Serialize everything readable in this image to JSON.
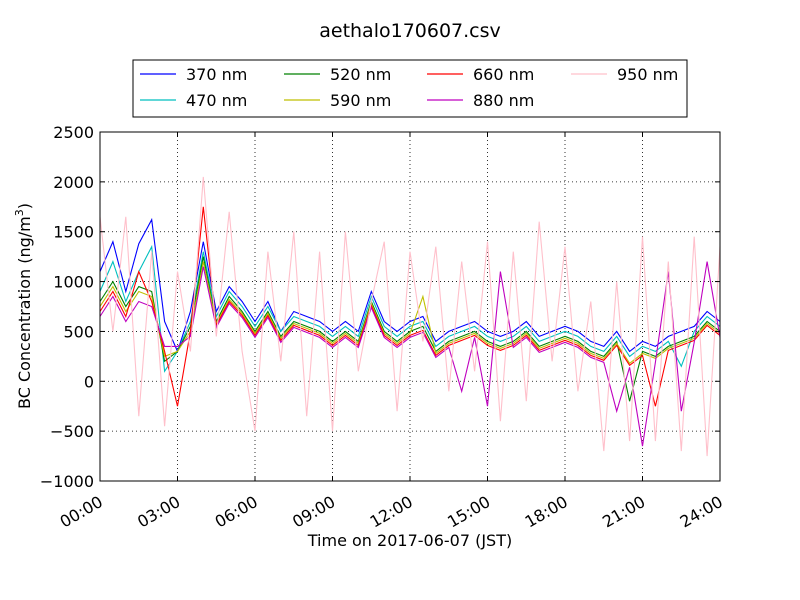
{
  "chart_data": {
    "type": "line",
    "title": "aethalo170607.csv",
    "xlabel": "Time on 2017-06-07 (JST)",
    "ylabel": "BC Concentration (ng/m³)",
    "ylabel_main": "BC Concentration (ng/m",
    "ylabel_sup": "3",
    "ylabel_tail": ")",
    "xlim": [
      0,
      24
    ],
    "ylim": [
      -1000,
      2500
    ],
    "x_ticks": [
      {
        "value": 0,
        "label": "00:00"
      },
      {
        "value": 3,
        "label": "03:00"
      },
      {
        "value": 6,
        "label": "06:00"
      },
      {
        "value": 9,
        "label": "09:00"
      },
      {
        "value": 12,
        "label": "12:00"
      },
      {
        "value": 15,
        "label": "15:00"
      },
      {
        "value": 18,
        "label": "18:00"
      },
      {
        "value": 21,
        "label": "21:00"
      },
      {
        "value": 24,
        "label": "24:00"
      }
    ],
    "y_ticks": [
      {
        "value": -1000,
        "label": "−1000"
      },
      {
        "value": -500,
        "label": "−500"
      },
      {
        "value": 0,
        "label": "0"
      },
      {
        "value": 500,
        "label": "500"
      },
      {
        "value": 1000,
        "label": "1000"
      },
      {
        "value": 1500,
        "label": "1500"
      },
      {
        "value": 2000,
        "label": "2000"
      },
      {
        "value": 2500,
        "label": "2500"
      }
    ],
    "grid": true,
    "legend_position": "top",
    "series": [
      {
        "name": "370 nm",
        "color": "#0000ff",
        "x": [
          0,
          0.5,
          1,
          1.5,
          2,
          2.5,
          3,
          3.5,
          4,
          4.5,
          5,
          5.5,
          6,
          6.5,
          7,
          7.5,
          8,
          8.5,
          9,
          9.5,
          10,
          10.5,
          11,
          11.5,
          12,
          12.5,
          13,
          13.5,
          14,
          14.5,
          15,
          15.5,
          16,
          16.5,
          17,
          17.5,
          18,
          18.5,
          19,
          19.5,
          20,
          20.5,
          21,
          21.5,
          22,
          22.5,
          23,
          23.5,
          24
        ],
        "values": [
          1100,
          1400,
          900,
          1380,
          1620,
          600,
          300,
          700,
          1400,
          700,
          950,
          800,
          600,
          800,
          500,
          700,
          650,
          600,
          500,
          600,
          500,
          900,
          600,
          500,
          600,
          650,
          400,
          500,
          550,
          600,
          500,
          450,
          500,
          600,
          450,
          500,
          550,
          500,
          400,
          350,
          500,
          300,
          400,
          350,
          450,
          500,
          550,
          700,
          600
        ]
      },
      {
        "name": "470 nm",
        "color": "#00bfbf",
        "x": [
          0,
          0.5,
          1,
          1.5,
          2,
          2.5,
          3,
          3.5,
          4,
          4.5,
          5,
          5.5,
          6,
          6.5,
          7,
          7.5,
          8,
          8.5,
          9,
          9.5,
          10,
          10.5,
          11,
          11.5,
          12,
          12.5,
          13,
          13.5,
          14,
          14.5,
          15,
          15.5,
          16,
          16.5,
          17,
          17.5,
          18,
          18.5,
          19,
          19.5,
          20,
          20.5,
          21,
          21.5,
          22,
          22.5,
          23,
          23.5,
          24
        ],
        "values": [
          900,
          1200,
          800,
          1100,
          1350,
          100,
          300,
          600,
          1300,
          650,
          900,
          750,
          550,
          750,
          500,
          650,
          600,
          550,
          450,
          550,
          450,
          850,
          550,
          450,
          550,
          600,
          350,
          450,
          500,
          550,
          450,
          400,
          450,
          550,
          400,
          450,
          500,
          450,
          350,
          300,
          450,
          250,
          350,
          300,
          400,
          150,
          500,
          650,
          550
        ]
      },
      {
        "name": "520 nm",
        "color": "#008000",
        "x": [
          0,
          0.5,
          1,
          1.5,
          2,
          2.5,
          3,
          3.5,
          4,
          4.5,
          5,
          5.5,
          6,
          6.5,
          7,
          7.5,
          8,
          8.5,
          9,
          9.5,
          10,
          10.5,
          11,
          11.5,
          12,
          12.5,
          13,
          13.5,
          14,
          14.5,
          15,
          15.5,
          16,
          16.5,
          17,
          17.5,
          18,
          18.5,
          19,
          19.5,
          20,
          20.5,
          21,
          21.5,
          22,
          22.5,
          23,
          23.5,
          24
        ],
        "values": [
          800,
          1000,
          750,
          950,
          900,
          200,
          300,
          550,
          1250,
          600,
          850,
          700,
          500,
          700,
          450,
          600,
          550,
          500,
          400,
          500,
          400,
          800,
          500,
          400,
          500,
          550,
          300,
          400,
          450,
          500,
          400,
          350,
          400,
          500,
          350,
          400,
          450,
          400,
          300,
          250,
          400,
          -200,
          300,
          250,
          350,
          400,
          450,
          600,
          500
        ]
      },
      {
        "name": "590 nm",
        "color": "#bfbf00",
        "x": [
          0,
          0.5,
          1,
          1.5,
          2,
          2.5,
          3,
          3.5,
          4,
          4.5,
          5,
          5.5,
          6,
          6.5,
          7,
          7.5,
          8,
          8.5,
          9,
          9.5,
          10,
          10.5,
          11,
          11.5,
          12,
          12.5,
          13,
          13.5,
          14,
          14.5,
          15,
          15.5,
          16,
          16.5,
          17,
          17.5,
          18,
          18.5,
          19,
          19.5,
          20,
          20.5,
          21,
          21.5,
          22,
          22.5,
          23,
          23.5,
          24
        ],
        "values": [
          750,
          950,
          700,
          900,
          850,
          250,
          300,
          500,
          1200,
          580,
          820,
          680,
          480,
          680,
          430,
          580,
          530,
          480,
          380,
          480,
          380,
          780,
          480,
          380,
          480,
          850,
          280,
          380,
          430,
          480,
          380,
          330,
          380,
          480,
          330,
          380,
          430,
          380,
          280,
          230,
          380,
          180,
          280,
          230,
          330,
          380,
          430,
          580,
          480
        ]
      },
      {
        "name": "660 nm",
        "color": "#ff0000",
        "x": [
          0,
          0.5,
          1,
          1.5,
          2,
          2.5,
          3,
          3.5,
          4,
          4.5,
          5,
          5.5,
          6,
          6.5,
          7,
          7.5,
          8,
          8.5,
          9,
          9.5,
          10,
          10.5,
          11,
          11.5,
          12,
          12.5,
          13,
          13.5,
          14,
          14.5,
          15,
          15.5,
          16,
          16.5,
          17,
          17.5,
          18,
          18.5,
          19,
          19.5,
          20,
          20.5,
          21,
          21.5,
          22,
          22.5,
          23,
          23.5,
          24
        ],
        "values": [
          700,
          900,
          650,
          1100,
          800,
          300,
          -250,
          500,
          1750,
          560,
          800,
          660,
          460,
          660,
          410,
          560,
          510,
          460,
          360,
          460,
          360,
          760,
          460,
          360,
          460,
          510,
          260,
          360,
          410,
          460,
          360,
          310,
          360,
          460,
          310,
          360,
          410,
          360,
          260,
          210,
          360,
          160,
          260,
          -250,
          310,
          360,
          410,
          560,
          460
        ]
      },
      {
        "name": "880 nm",
        "color": "#bf00bf",
        "x": [
          0,
          0.5,
          1,
          1.5,
          2,
          2.5,
          3,
          3.5,
          4,
          4.5,
          5,
          5.5,
          6,
          6.5,
          7,
          7.5,
          8,
          8.5,
          9,
          9.5,
          10,
          10.5,
          11,
          11.5,
          12,
          12.5,
          13,
          13.5,
          14,
          14.5,
          15,
          15.5,
          16,
          16.5,
          17,
          17.5,
          18,
          18.5,
          19,
          19.5,
          20,
          20.5,
          21,
          21.5,
          22,
          22.5,
          23,
          23.5,
          24
        ],
        "values": [
          650,
          850,
          600,
          800,
          750,
          350,
          350,
          450,
          1150,
          540,
          780,
          640,
          440,
          640,
          390,
          540,
          490,
          440,
          340,
          440,
          340,
          740,
          440,
          340,
          440,
          490,
          240,
          340,
          -100,
          440,
          -250,
          1100,
          340,
          440,
          290,
          340,
          390,
          340,
          240,
          190,
          -300,
          140,
          -650,
          190,
          1100,
          -300,
          390,
          1200,
          440
        ]
      },
      {
        "name": "950 nm",
        "color": "#ffc0cb",
        "x": [
          0,
          0.5,
          1,
          1.5,
          2,
          2.5,
          3,
          3.5,
          4,
          4.5,
          5,
          5.5,
          6,
          6.5,
          7,
          7.5,
          8,
          8.5,
          9,
          9.5,
          10,
          10.5,
          11,
          11.5,
          12,
          12.5,
          13,
          13.5,
          14,
          14.5,
          15,
          15.5,
          16,
          16.5,
          17,
          17.5,
          18,
          18.5,
          19,
          19.5,
          20,
          20.5,
          21,
          21.5,
          22,
          22.5,
          23,
          23.5,
          24
        ],
        "values": [
          1650,
          500,
          1650,
          -350,
          1300,
          -450,
          1100,
          300,
          2050,
          450,
          1700,
          300,
          -500,
          1300,
          200,
          1500,
          -350,
          1300,
          -500,
          1500,
          100,
          800,
          1400,
          -300,
          1300,
          400,
          1350,
          -100,
          1200,
          100,
          1400,
          -400,
          1300,
          -200,
          1600,
          200,
          1350,
          -100,
          800,
          -700,
          1000,
          -600,
          1450,
          -600,
          1200,
          -700,
          1450,
          -750,
          1350
        ]
      }
    ]
  }
}
